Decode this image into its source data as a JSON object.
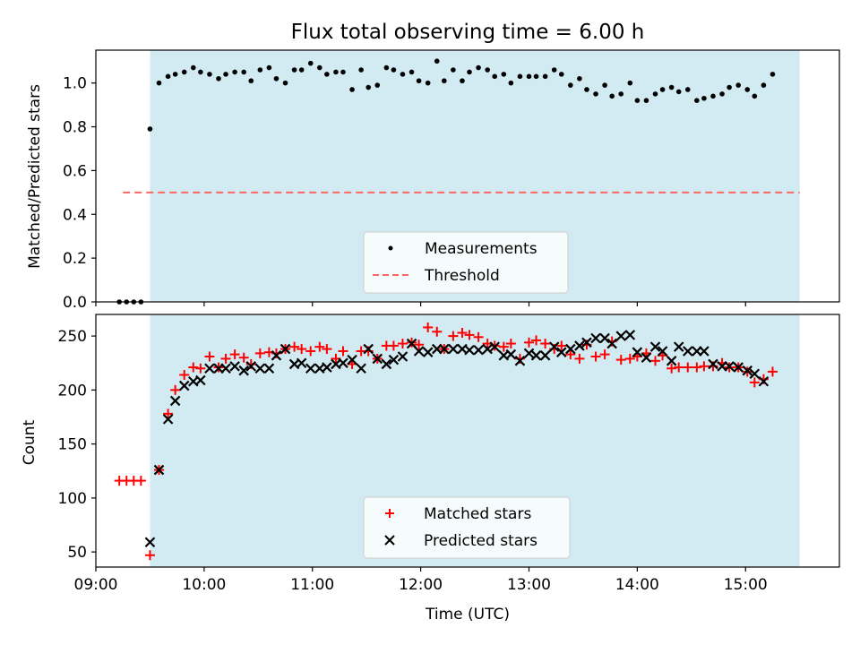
{
  "chart_data": [
    {
      "type": "scatter",
      "title": "Flux total observing time = 6.00 h",
      "xlabel": "",
      "ylabel": "Matched/Predicted stars",
      "ylim": [
        0,
        1.15
      ],
      "yticks": [
        "0.0",
        "0.2",
        "0.4",
        "0.6",
        "0.8",
        "1.0"
      ],
      "xlim": [
        "09:00",
        "15:52"
      ],
      "grid": false,
      "legend_position": "lower center",
      "observing_window": {
        "start": "09:30",
        "end": "15:30",
        "color": "#add8e6"
      },
      "threshold": {
        "name": "Threshold",
        "value": 0.5,
        "from": "09:15",
        "to": "15:30",
        "color": "#ff6666",
        "style": "dashed"
      },
      "series": [
        {
          "name": "Measurements",
          "color": "#000000",
          "marker": "dot",
          "points": [
            [
              "09:13",
              0.0
            ],
            [
              "09:17",
              0.0
            ],
            [
              "09:21",
              0.0
            ],
            [
              "09:25",
              0.0
            ],
            [
              "09:30",
              0.79
            ],
            [
              "09:35",
              1.0
            ],
            [
              "09:40",
              1.03
            ],
            [
              "09:44",
              1.04
            ],
            [
              "09:49",
              1.05
            ],
            [
              "09:54",
              1.07
            ],
            [
              "09:58",
              1.05
            ],
            [
              "10:03",
              1.04
            ],
            [
              "10:08",
              1.02
            ],
            [
              "10:12",
              1.04
            ],
            [
              "10:17",
              1.05
            ],
            [
              "10:22",
              1.05
            ],
            [
              "10:26",
              1.01
            ],
            [
              "10:31",
              1.06
            ],
            [
              "10:36",
              1.07
            ],
            [
              "10:40",
              1.02
            ],
            [
              "10:45",
              1.0
            ],
            [
              "10:50",
              1.06
            ],
            [
              "10:54",
              1.06
            ],
            [
              "10:59",
              1.09
            ],
            [
              "11:04",
              1.07
            ],
            [
              "11:08",
              1.04
            ],
            [
              "11:13",
              1.05
            ],
            [
              "11:17",
              1.05
            ],
            [
              "11:22",
              0.97
            ],
            [
              "11:27",
              1.06
            ],
            [
              "11:31",
              0.98
            ],
            [
              "11:36",
              0.99
            ],
            [
              "11:41",
              1.07
            ],
            [
              "11:45",
              1.06
            ],
            [
              "11:50",
              1.04
            ],
            [
              "11:55",
              1.05
            ],
            [
              "11:59",
              1.01
            ],
            [
              "12:04",
              1.0
            ],
            [
              "12:09",
              1.1
            ],
            [
              "12:13",
              1.01
            ],
            [
              "12:18",
              1.06
            ],
            [
              "12:23",
              1.01
            ],
            [
              "12:27",
              1.05
            ],
            [
              "12:32",
              1.07
            ],
            [
              "12:37",
              1.06
            ],
            [
              "12:41",
              1.03
            ],
            [
              "12:46",
              1.04
            ],
            [
              "12:50",
              1.0
            ],
            [
              "12:55",
              1.03
            ],
            [
              "13:00",
              1.03
            ],
            [
              "13:04",
              1.03
            ],
            [
              "13:09",
              1.03
            ],
            [
              "13:14",
              1.06
            ],
            [
              "13:18",
              1.04
            ],
            [
              "13:23",
              0.99
            ],
            [
              "13:28",
              1.02
            ],
            [
              "13:32",
              0.97
            ],
            [
              "13:37",
              0.95
            ],
            [
              "13:42",
              0.99
            ],
            [
              "13:46",
              0.94
            ],
            [
              "13:51",
              0.95
            ],
            [
              "13:56",
              1.0
            ],
            [
              "14:00",
              0.92
            ],
            [
              "14:05",
              0.92
            ],
            [
              "14:10",
              0.95
            ],
            [
              "14:14",
              0.97
            ],
            [
              "14:19",
              0.98
            ],
            [
              "14:23",
              0.96
            ],
            [
              "14:28",
              0.97
            ],
            [
              "14:33",
              0.92
            ],
            [
              "14:37",
              0.93
            ],
            [
              "14:42",
              0.94
            ],
            [
              "14:47",
              0.95
            ],
            [
              "14:51",
              0.98
            ],
            [
              "14:56",
              0.99
            ],
            [
              "15:01",
              0.97
            ],
            [
              "15:05",
              0.94
            ],
            [
              "15:10",
              0.99
            ],
            [
              "15:15",
              1.04
            ]
          ]
        }
      ]
    },
    {
      "type": "scatter",
      "title": "",
      "xlabel": "Time (UTC)",
      "ylabel": "Count",
      "ylim": [
        36,
        270
      ],
      "yticks": [
        "50",
        "100",
        "150",
        "200",
        "250"
      ],
      "xlim": [
        "09:00",
        "15:52"
      ],
      "xticks": [
        "09:00",
        "10:00",
        "11:00",
        "12:00",
        "13:00",
        "14:00",
        "15:00"
      ],
      "grid": false,
      "legend_position": "lower center",
      "observing_window": {
        "start": "09:30",
        "end": "15:30",
        "color": "#add8e6"
      },
      "series": [
        {
          "name": "Matched stars",
          "color": "#ff0000",
          "marker": "plus",
          "points": [
            [
              "09:13",
              116
            ],
            [
              "09:17",
              116
            ],
            [
              "09:21",
              116
            ],
            [
              "09:25",
              116
            ],
            [
              "09:30",
              47
            ],
            [
              "09:35",
              126
            ],
            [
              "09:40",
              178
            ],
            [
              "09:44",
              200
            ],
            [
              "09:49",
              214
            ],
            [
              "09:54",
              221
            ],
            [
              "09:58",
              220
            ],
            [
              "10:03",
              231
            ],
            [
              "10:08",
              221
            ],
            [
              "10:12",
              229
            ],
            [
              "10:17",
              233
            ],
            [
              "10:22",
              230
            ],
            [
              "10:26",
              224
            ],
            [
              "10:31",
              234
            ],
            [
              "10:36",
              235
            ],
            [
              "10:40",
              234
            ],
            [
              "10:45",
              238
            ],
            [
              "10:50",
              240
            ],
            [
              "10:54",
              238
            ],
            [
              "10:59",
              236
            ],
            [
              "11:04",
              240
            ],
            [
              "11:08",
              238
            ],
            [
              "11:13",
              229
            ],
            [
              "11:17",
              236
            ],
            [
              "11:22",
              224
            ],
            [
              "11:27",
              236
            ],
            [
              "11:31",
              236
            ],
            [
              "11:36",
              229
            ],
            [
              "11:41",
              241
            ],
            [
              "11:45",
              241
            ],
            [
              "11:50",
              243
            ],
            [
              "11:55",
              244
            ],
            [
              "11:59",
              242
            ],
            [
              "12:04",
              258
            ],
            [
              "12:09",
              254
            ],
            [
              "12:13",
              238
            ],
            [
              "12:18",
              250
            ],
            [
              "12:23",
              253
            ],
            [
              "12:27",
              251
            ],
            [
              "12:32",
              249
            ],
            [
              "12:37",
              243
            ],
            [
              "12:41",
              241
            ],
            [
              "12:46",
              240
            ],
            [
              "12:50",
              243
            ],
            [
              "12:55",
              229
            ],
            [
              "13:00",
              244
            ],
            [
              "13:04",
              246
            ],
            [
              "13:09",
              243
            ],
            [
              "13:14",
              238
            ],
            [
              "13:18",
              241
            ],
            [
              "13:23",
              233
            ],
            [
              "13:28",
              229
            ],
            [
              "13:32",
              242
            ],
            [
              "13:37",
              231
            ],
            [
              "13:42",
              233
            ],
            [
              "13:46",
              245
            ],
            [
              "13:51",
              228
            ],
            [
              "13:56",
              229
            ],
            [
              "14:00",
              231
            ],
            [
              "14:05",
              234
            ],
            [
              "14:10",
              227
            ],
            [
              "14:14",
              232
            ],
            [
              "14:19",
              220
            ],
            [
              "14:23",
              221
            ],
            [
              "14:28",
              221
            ],
            [
              "14:33",
              221
            ],
            [
              "14:37",
              222
            ],
            [
              "14:42",
              222
            ],
            [
              "14:47",
              225
            ],
            [
              "14:51",
              221
            ],
            [
              "14:56",
              221
            ],
            [
              "15:01",
              217
            ],
            [
              "15:05",
              207
            ],
            [
              "15:10",
              210
            ],
            [
              "15:15",
              217
            ]
          ]
        },
        {
          "name": "Predicted stars",
          "color": "#000000",
          "marker": "x",
          "points": [
            [
              "09:30",
              59
            ],
            [
              "09:35",
              126
            ],
            [
              "09:40",
              173
            ],
            [
              "09:44",
              190
            ],
            [
              "09:49",
              204
            ],
            [
              "09:54",
              208
            ],
            [
              "09:58",
              209
            ],
            [
              "10:03",
              220
            ],
            [
              "10:08",
              220
            ],
            [
              "10:12",
              220
            ],
            [
              "10:17",
              222
            ],
            [
              "10:22",
              218
            ],
            [
              "10:26",
              222
            ],
            [
              "10:31",
              220
            ],
            [
              "10:36",
              220
            ],
            [
              "10:40",
              232
            ],
            [
              "10:45",
              238
            ],
            [
              "10:50",
              224
            ],
            [
              "10:54",
              225
            ],
            [
              "10:59",
              220
            ],
            [
              "11:04",
              220
            ],
            [
              "11:08",
              221
            ],
            [
              "11:13",
              224
            ],
            [
              "11:17",
              225
            ],
            [
              "11:22",
              228
            ],
            [
              "11:27",
              220
            ],
            [
              "11:31",
              238
            ],
            [
              "11:36",
              229
            ],
            [
              "11:41",
              224
            ],
            [
              "11:45",
              228
            ],
            [
              "11:50",
              231
            ],
            [
              "11:55",
              243
            ],
            [
              "11:59",
              236
            ],
            [
              "12:04",
              235
            ],
            [
              "12:09",
              238
            ],
            [
              "12:13",
              238
            ],
            [
              "12:18",
              238
            ],
            [
              "12:23",
              238
            ],
            [
              "12:27",
              237
            ],
            [
              "12:32",
              237
            ],
            [
              "12:37",
              238
            ],
            [
              "12:41",
              240
            ],
            [
              "12:46",
              232
            ],
            [
              "12:50",
              233
            ],
            [
              "12:55",
              227
            ],
            [
              "13:00",
              234
            ],
            [
              "13:04",
              232
            ],
            [
              "13:09",
              232
            ],
            [
              "13:14",
              240
            ],
            [
              "13:18",
              235
            ],
            [
              "13:23",
              238
            ],
            [
              "13:28",
              241
            ],
            [
              "13:32",
              244
            ],
            [
              "13:37",
              248
            ],
            [
              "13:42",
              248
            ],
            [
              "13:46",
              243
            ],
            [
              "13:51",
              250
            ],
            [
              "13:56",
              251
            ],
            [
              "14:00",
              235
            ],
            [
              "14:05",
              230
            ],
            [
              "14:10",
              240
            ],
            [
              "14:14",
              236
            ],
            [
              "14:19",
              227
            ],
            [
              "14:23",
              240
            ],
            [
              "14:28",
              236
            ],
            [
              "14:33",
              236
            ],
            [
              "14:37",
              236
            ],
            [
              "14:42",
              224
            ],
            [
              "14:47",
              222
            ],
            [
              "14:51",
              222
            ],
            [
              "14:56",
              221
            ],
            [
              "15:01",
              218
            ],
            [
              "15:05",
              215
            ],
            [
              "15:10",
              208
            ]
          ]
        }
      ]
    }
  ]
}
